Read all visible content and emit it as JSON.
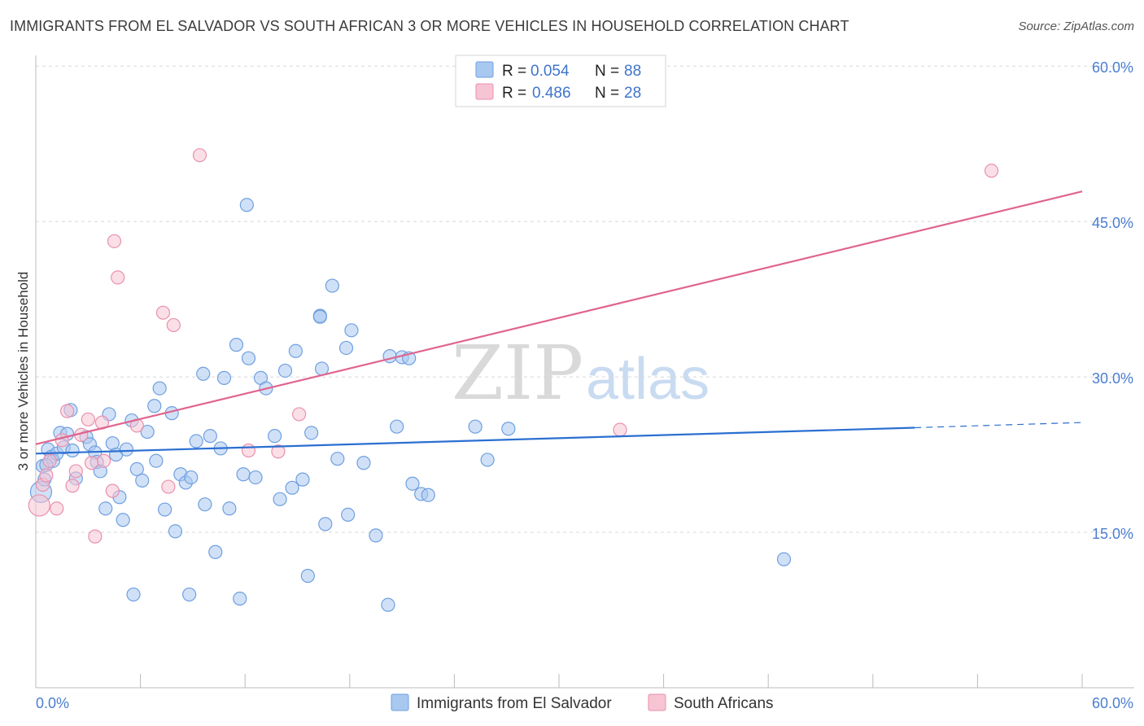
{
  "title": "IMMIGRANTS FROM EL SALVADOR VS SOUTH AFRICAN 3 OR MORE VEHICLES IN HOUSEHOLD CORRELATION CHART",
  "source": "Source: ZipAtlas.com",
  "watermark": {
    "zip": "ZIP",
    "atlas": "atlas"
  },
  "colors": {
    "blue_fill": "#a9c8f0",
    "blue_stroke": "#6f9fe0",
    "blue_line": "#2b6fd1",
    "pink_fill": "#f7c4d3",
    "pink_stroke": "#e990ad",
    "pink_line": "#e0648e",
    "grid": "#d8d8d8",
    "axis_text": "#4a7ecf"
  },
  "legend": {
    "rows": [
      {
        "r_label": "R = ",
        "r_value": "0.054",
        "n_label": "N = ",
        "n_value": "88"
      },
      {
        "r_label": "R = ",
        "r_value": "0.486",
        "n_label": "N = ",
        "n_value": "28"
      }
    ]
  },
  "bottom_legend": [
    "Immigrants from El Salvador",
    "South Africans"
  ],
  "chart_data": {
    "type": "scatter",
    "xlabel": "",
    "ylabel": "3 or more Vehicles in Household",
    "xlim": [
      0,
      60
    ],
    "ylim": [
      0,
      66
    ],
    "x_tick_labels": [
      {
        "value": 0,
        "label": "0.0%"
      },
      {
        "value": 60,
        "label": "60.0%"
      }
    ],
    "y_tick_labels": [
      {
        "value": 15,
        "label": "15.0%"
      },
      {
        "value": 30,
        "label": "30.0%"
      },
      {
        "value": 45,
        "label": "45.0%"
      },
      {
        "value": 60,
        "label": "60.0%"
      }
    ],
    "grid": true,
    "legend_position": "top-center",
    "series": [
      {
        "name": "Immigrants from El Salvador",
        "color": "#a9c8f0",
        "trend": {
          "x": [
            0,
            50.4
          ],
          "y": [
            22.6,
            25.1
          ],
          "dashed_extension_to_x": 60,
          "dashed_y_end": 25.6
        },
        "points": [
          [
            0.3,
            18.9
          ],
          [
            0.4,
            21.4
          ],
          [
            0.5,
            20.1
          ],
          [
            0.7,
            23.0
          ],
          [
            0.9,
            22.3
          ],
          [
            1.0,
            21.9
          ],
          [
            1.2,
            22.6
          ],
          [
            1.4,
            24.6
          ],
          [
            1.6,
            23.2
          ],
          [
            1.8,
            24.5
          ],
          [
            2.0,
            26.8
          ],
          [
            2.1,
            22.9
          ],
          [
            2.3,
            20.2
          ],
          [
            2.9,
            24.2
          ],
          [
            3.1,
            23.5
          ],
          [
            3.4,
            22.7
          ],
          [
            3.5,
            21.8
          ],
          [
            3.7,
            20.9
          ],
          [
            4.0,
            17.3
          ],
          [
            4.2,
            26.4
          ],
          [
            4.4,
            23.6
          ],
          [
            4.6,
            22.5
          ],
          [
            4.8,
            18.4
          ],
          [
            5.0,
            16.2
          ],
          [
            5.2,
            23.0
          ],
          [
            5.5,
            25.8
          ],
          [
            5.8,
            21.1
          ],
          [
            6.1,
            20.0
          ],
          [
            6.4,
            24.7
          ],
          [
            6.8,
            27.2
          ],
          [
            6.9,
            21.9
          ],
          [
            7.1,
            28.9
          ],
          [
            7.4,
            17.2
          ],
          [
            7.8,
            26.5
          ],
          [
            8.0,
            15.1
          ],
          [
            8.3,
            20.6
          ],
          [
            8.6,
            19.8
          ],
          [
            8.9,
            20.3
          ],
          [
            9.2,
            23.8
          ],
          [
            9.6,
            30.3
          ],
          [
            9.7,
            17.7
          ],
          [
            10.0,
            24.3
          ],
          [
            10.3,
            13.1
          ],
          [
            10.6,
            23.1
          ],
          [
            10.8,
            29.9
          ],
          [
            11.1,
            17.3
          ],
          [
            11.5,
            33.1
          ],
          [
            11.9,
            20.6
          ],
          [
            12.2,
            31.8
          ],
          [
            12.6,
            20.3
          ],
          [
            12.9,
            29.9
          ],
          [
            13.2,
            28.9
          ],
          [
            13.7,
            24.3
          ],
          [
            14.0,
            18.2
          ],
          [
            14.3,
            30.6
          ],
          [
            14.7,
            19.3
          ],
          [
            14.9,
            32.5
          ],
          [
            15.3,
            20.1
          ],
          [
            15.8,
            24.6
          ],
          [
            16.3,
            35.9
          ],
          [
            16.4,
            30.8
          ],
          [
            16.6,
            15.8
          ],
          [
            17.0,
            38.8
          ],
          [
            17.3,
            22.1
          ],
          [
            17.8,
            32.8
          ],
          [
            17.9,
            16.7
          ],
          [
            18.1,
            34.5
          ],
          [
            18.8,
            21.7
          ],
          [
            19.5,
            14.7
          ],
          [
            20.2,
            8.0
          ],
          [
            20.3,
            32.0
          ],
          [
            20.7,
            25.2
          ],
          [
            21.0,
            31.9
          ],
          [
            21.4,
            31.8
          ],
          [
            21.6,
            19.7
          ],
          [
            22.1,
            18.7
          ],
          [
            22.5,
            18.6
          ],
          [
            25.2,
            25.2
          ],
          [
            25.9,
            22.0
          ],
          [
            27.1,
            25.0
          ],
          [
            42.9,
            12.4
          ],
          [
            8.8,
            9.0
          ],
          [
            5.6,
            9.0
          ],
          [
            11.7,
            8.6
          ],
          [
            15.6,
            10.8
          ],
          [
            12.1,
            46.6
          ],
          [
            16.3,
            35.8
          ],
          [
            0.6,
            21.5
          ]
        ]
      },
      {
        "name": "South Africans",
        "color": "#f7c4d3",
        "trend": {
          "x": [
            0,
            60
          ],
          "y": [
            23.5,
            47.9
          ]
        },
        "points": [
          [
            0.2,
            17.6
          ],
          [
            0.4,
            19.6
          ],
          [
            0.6,
            20.5
          ],
          [
            0.8,
            21.9
          ],
          [
            1.2,
            17.3
          ],
          [
            1.5,
            23.9
          ],
          [
            1.8,
            26.7
          ],
          [
            2.1,
            19.5
          ],
          [
            2.3,
            20.9
          ],
          [
            2.6,
            24.4
          ],
          [
            3.0,
            25.9
          ],
          [
            3.4,
            14.6
          ],
          [
            3.8,
            25.6
          ],
          [
            3.9,
            21.9
          ],
          [
            4.4,
            19.0
          ],
          [
            4.5,
            43.1
          ],
          [
            4.7,
            39.6
          ],
          [
            5.8,
            25.3
          ],
          [
            7.3,
            36.2
          ],
          [
            7.6,
            19.4
          ],
          [
            7.9,
            35.0
          ],
          [
            9.4,
            51.4
          ],
          [
            12.2,
            22.9
          ],
          [
            13.9,
            22.8
          ],
          [
            15.1,
            26.4
          ],
          [
            33.5,
            24.9
          ],
          [
            54.8,
            49.9
          ],
          [
            3.2,
            21.7
          ]
        ]
      }
    ]
  }
}
